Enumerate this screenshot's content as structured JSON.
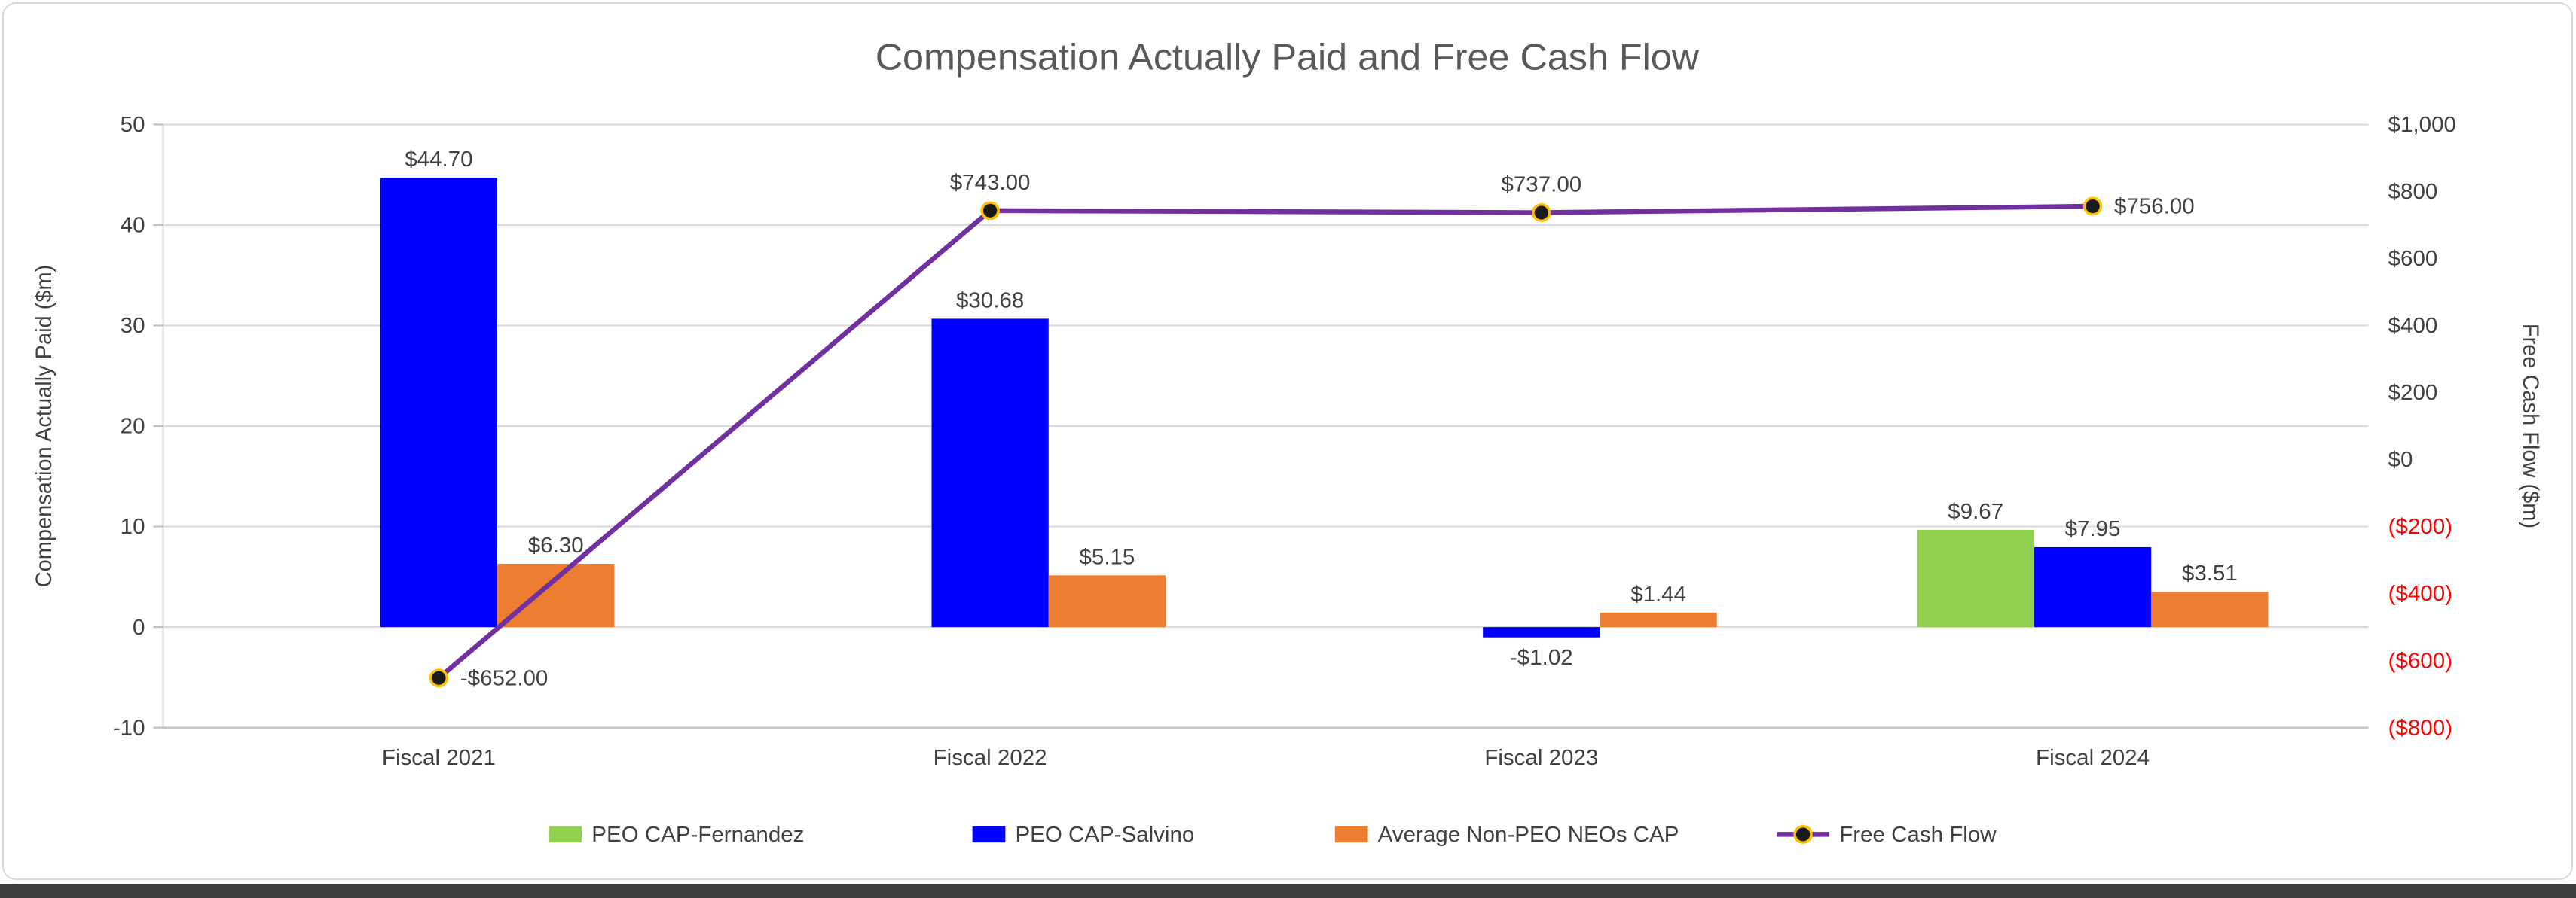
{
  "chart": {
    "title": "Compensation Actually Paid and Free Cash Flow"
  },
  "chart_data": {
    "type": "combo-bar-line",
    "title": "Compensation Actually Paid and Free Cash Flow",
    "categories": [
      "Fiscal 2021",
      "Fiscal 2022",
      "Fiscal 2023",
      "Fiscal 2024"
    ],
    "series": [
      {
        "name": "PEO CAP-Fernandez",
        "type": "bar",
        "axis": "left",
        "color": "#92D050",
        "values": [
          null,
          null,
          null,
          9.67
        ],
        "labels": [
          "",
          "",
          "",
          "$9.67"
        ]
      },
      {
        "name": "PEO CAP-Salvino",
        "type": "bar",
        "axis": "left",
        "color": "#0000FF",
        "values": [
          44.7,
          30.68,
          -1.02,
          7.95
        ],
        "labels": [
          "$44.70",
          "$30.68",
          "-$1.02",
          "$7.95"
        ]
      },
      {
        "name": "Average Non-PEO NEOs CAP",
        "type": "bar",
        "axis": "left",
        "color": "#ED7D31",
        "values": [
          6.3,
          5.15,
          1.44,
          3.51
        ],
        "labels": [
          "$6.30",
          "$5.15",
          "$1.44",
          "$3.51"
        ]
      },
      {
        "name": "Free Cash Flow",
        "type": "line",
        "axis": "right",
        "color": "#7030A0",
        "marker_fill": "#1A1A1A",
        "marker_stroke": "#FFC000",
        "values": [
          -652,
          743,
          737,
          756
        ],
        "labels": [
          "-$652.00",
          "$743.00",
          "$737.00",
          "$756.00"
        ],
        "label_placement": [
          "right",
          "above",
          "above",
          "right"
        ]
      }
    ],
    "left_axis": {
      "title": "Compensation Actually Paid ($m)",
      "min": -10,
      "max": 50,
      "step": 10,
      "tick_labels": [
        "50",
        "40",
        "30",
        "20",
        "10",
        "0",
        "-10"
      ]
    },
    "right_axis": {
      "title": "Free Cash Flow ($m)",
      "min": -800,
      "max": 1000,
      "step": 200,
      "tick_labels": [
        "$1,000",
        "$800",
        "$600",
        "$400",
        "$200",
        "$0",
        "($200)",
        "($400)",
        "($600)",
        "($800)"
      ],
      "negative_label_color": "#FF0000"
    },
    "legend_position": "bottom",
    "grid": true,
    "styles": {
      "grid_color": "#D9D9D9",
      "axis_line_color": "#BFBFBF",
      "text_color": "#404040",
      "title_color": "#595959",
      "background": "#FFFFFF",
      "border_color": "#D9D9D9"
    }
  }
}
